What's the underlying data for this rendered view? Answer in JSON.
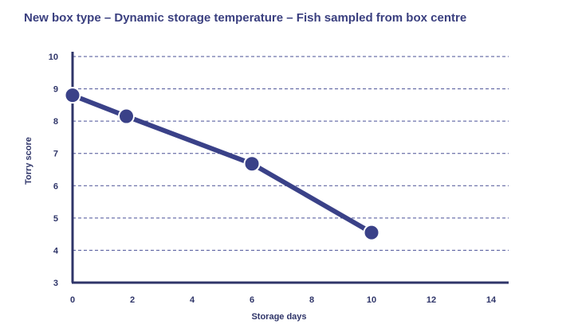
{
  "chart_data": {
    "type": "line",
    "title": "New box type – Dynamic storage temperature – Fish sampled from box centre",
    "xlabel": "Storage days",
    "ylabel": "Torry score",
    "xlim": [
      0,
      14
    ],
    "ylim": [
      3,
      10
    ],
    "xticks": [
      "0",
      "2",
      "4",
      "6",
      "8",
      "10",
      "12",
      "14"
    ],
    "yticks": [
      "3",
      "4",
      "5",
      "6",
      "7",
      "8",
      "9",
      "10"
    ],
    "grid": "horizontal-dashed",
    "series": [
      {
        "x": [
          0,
          1.8,
          6,
          10
        ],
        "y": [
          8.8,
          8.15,
          6.68,
          4.55
        ]
      }
    ],
    "colors": {
      "series": "#3a4188",
      "axis": "#2f3569",
      "grid": "#4a5096",
      "title": "#3a3f7f"
    }
  }
}
